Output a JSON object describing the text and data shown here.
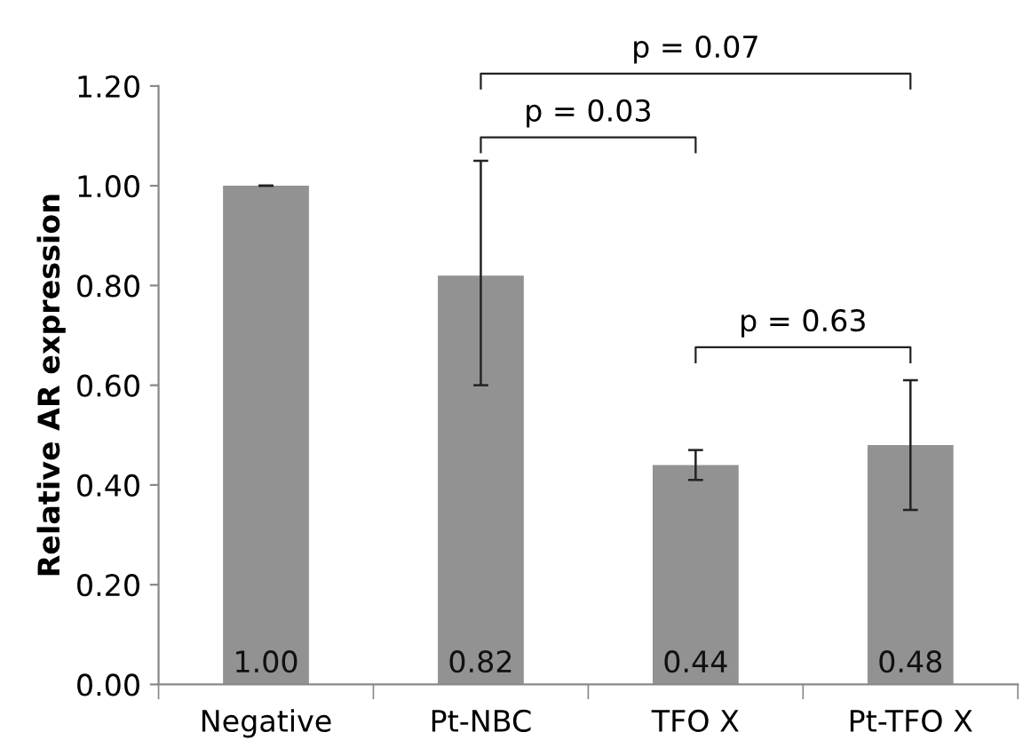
{
  "chart_data": {
    "type": "bar",
    "ylabel": "Relative AR expression",
    "categories": [
      "Negative",
      "Pt-NBC",
      "TFO X",
      "Pt-TFO X"
    ],
    "values": [
      1.0,
      0.82,
      0.44,
      0.48
    ],
    "errors": [
      0,
      [
        0.6,
        1.05
      ],
      [
        0.41,
        0.47
      ],
      [
        0.35,
        0.61
      ]
    ],
    "color": "#929292",
    "value_labels": [
      "1.00",
      "0.82",
      "0.44",
      "0.48"
    ],
    "ylim": [
      0,
      1.2
    ],
    "yticks": [
      {
        "value": 0,
        "label": "0.00"
      },
      {
        "value": 0.2,
        "label": "0.20"
      },
      {
        "value": 0.4,
        "label": "0.40"
      },
      {
        "value": 0.6,
        "label": "0.60"
      },
      {
        "value": 0.8,
        "label": "0.80"
      },
      {
        "value": 1.0,
        "label": "1.00"
      },
      {
        "value": 1.2,
        "label": "1.20"
      }
    ],
    "grid": false,
    "legend": false,
    "annotations": [
      "p = 0.07",
      "p = 0.03",
      "p = 0.63"
    ]
  }
}
